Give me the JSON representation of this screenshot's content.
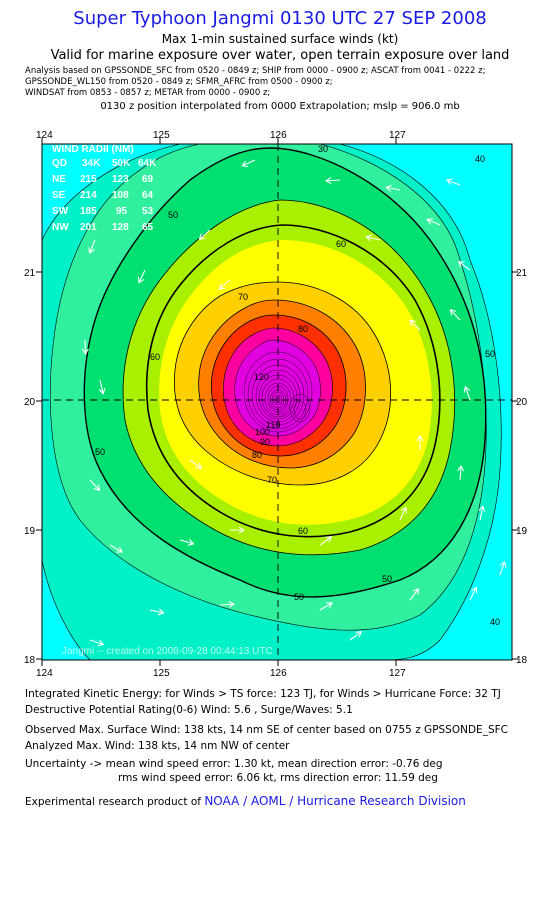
{
  "header": {
    "title": "Super Typhoon Jangmi 0130 UTC 27 SEP 2008",
    "subtitle": "Max 1-min sustained surface winds (kt)",
    "validity": "Valid for marine exposure over water, open terrain exposure over land",
    "analysis_line1": "Analysis based on  GPSSONDE_SFC from 0520 - 0849 z;  SHIP from 0000 - 0900 z;  ASCAT from 0041 - 0222 z;",
    "analysis_line2": "GPSSONDE_WL150 from 0520 - 0849 z;  SFMR_AFRC from 0500 - 0900 z;",
    "analysis_line3": "WINDSAT from 0853 - 0857 z;  METAR from 0000 - 0900 z;",
    "position_note": "0130 z position interpolated from 0000 Extrapolation; mslp = 906.0 mb"
  },
  "map": {
    "lon_labels": [
      "124",
      "125",
      "126",
      "127"
    ],
    "lat_labels": [
      "21",
      "20",
      "19",
      "18"
    ],
    "center_lon": 126,
    "center_lat": 20,
    "contour_labels": [
      "30",
      "40",
      "50",
      "60",
      "70",
      "80",
      "90",
      "100",
      "110",
      "120"
    ],
    "wind_radii": {
      "title": "WIND RADII (NM)",
      "header": [
        "QD",
        "34K",
        "50K",
        "64K"
      ],
      "rows": [
        [
          "NE",
          "215",
          "123",
          "69"
        ],
        [
          "SE",
          "214",
          "108",
          "64"
        ],
        [
          "SW",
          "185",
          "95",
          "53"
        ],
        [
          "NW",
          "201",
          "128",
          "65"
        ]
      ]
    },
    "footer_stamp": "Jangmi -- created on 2008-09-28 00:44:13 UTC",
    "colors": {
      "bg": "#00ffff",
      "c30": "#00f0c8",
      "c40": "#30f0a0",
      "c50": "#00e070",
      "c60": "#a8f000",
      "c64": "#ffff00",
      "c70": "#ffd000",
      "c80": "#ff8000",
      "c90": "#ff3000",
      "c100": "#ff00a0",
      "c110": "#e000e0"
    }
  },
  "info": {
    "ike": "Integrated Kinetic Energy:  for Winds > TS force: 123 TJ,  for Winds > Hurricane Force: 32 TJ",
    "dpr": "Destructive Potential Rating(0-6)   Wind: 5.6 , Surge/Waves: 5.1",
    "observed": "Observed Max. Surface Wind: 138 kts, 14 nm SE of center based on 0755 z GPSSONDE_SFC",
    "analyzed": "Analyzed Max. Wind: 138 kts, 14 nm NW of center",
    "uncertainty1": "Uncertainty -> mean wind speed error: 1.30 kt,   mean direction error:  -0.76 deg",
    "uncertainty2": "rms wind speed error: 6.06 kt,   rms direction error: 11.59 deg",
    "credit_prefix": "Experimental research product of ",
    "credit_org": "NOAA / AOML / Hurricane Research Division"
  }
}
